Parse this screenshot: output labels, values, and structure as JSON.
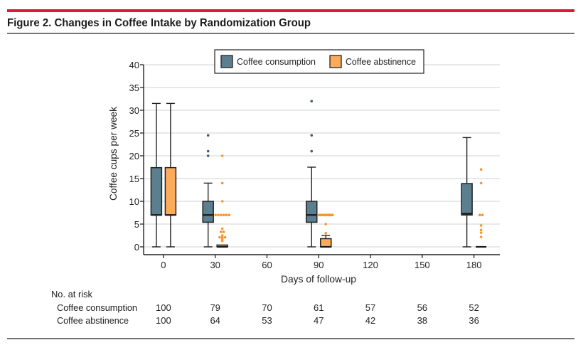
{
  "figure": {
    "title": "Figure 2. Changes in Coffee Intake by Randomization Group",
    "accent_color": "#e0173c"
  },
  "legend": {
    "items": [
      {
        "label": "Coffee consumption",
        "color": "#5b7f8e"
      },
      {
        "label": "Coffee abstinence",
        "color": "#fbab5c"
      }
    ]
  },
  "chart_data": {
    "type": "bar",
    "subtype": "boxplot",
    "title": "Figure 2. Changes in Coffee Intake by Randomization Group",
    "xlabel": "Days of follow-up",
    "ylabel": "Coffee cups per week",
    "xlim": [
      -11.5,
      195
    ],
    "ylim": [
      0,
      40
    ],
    "xticks": [
      "0",
      "30",
      "60",
      "90",
      "120",
      "150",
      "180"
    ],
    "xtick_values": [
      0,
      30,
      60,
      90,
      120,
      150,
      180
    ],
    "yticks": [
      "0",
      "5",
      "10",
      "15",
      "20",
      "25",
      "30",
      "35",
      "40"
    ],
    "ytick_values": [
      0,
      5,
      10,
      15,
      20,
      25,
      30,
      35,
      40
    ],
    "grid": true,
    "legend_position": "top-center",
    "series": [
      {
        "name": "Coffee consumption",
        "color": "#5b7f8e",
        "boxes": [
          {
            "day": 0,
            "low": 0,
            "q1": 7,
            "median": 7,
            "q3": 17.4,
            "high": 31.5,
            "outliers": []
          },
          {
            "day": 30,
            "low": 0,
            "q1": 5.4,
            "median": 7,
            "q3": 10,
            "high": 14,
            "outliers": [
              20,
              21,
              24.5
            ]
          },
          {
            "day": 90,
            "low": 0,
            "q1": 5.4,
            "median": 7,
            "q3": 10,
            "high": 17.5,
            "outliers": [
              21,
              24.5,
              32
            ]
          },
          {
            "day": 180,
            "low": 0,
            "q1": 7,
            "median": 7.3,
            "q3": 13.9,
            "high": 24,
            "outliers": []
          }
        ]
      },
      {
        "name": "Coffee abstinence",
        "color": "#fbab5c",
        "boxes": [
          {
            "day": 0,
            "low": 0,
            "q1": 7,
            "median": 7,
            "q3": 17.4,
            "high": 31.5,
            "outliers": []
          },
          {
            "day": 30,
            "low": 0,
            "q1": 0,
            "median": 0,
            "q3": 0.4,
            "high": 0.4,
            "outliers": [
              1.3,
              1.7,
              2.1,
              2.1,
              2.1,
              2.5,
              3.3,
              3.3,
              4,
              7,
              7,
              7,
              7,
              7,
              7,
              10,
              14,
              20
            ]
          },
          {
            "day": 90,
            "low": 0,
            "q1": 0,
            "median": 0,
            "q3": 1.8,
            "high": 2.5,
            "outliers": [
              3,
              5,
              7,
              7,
              7,
              7,
              7,
              7,
              7,
              7,
              7,
              7
            ]
          },
          {
            "day": 180,
            "low": 0,
            "q1": 0,
            "median": 0,
            "q3": 0,
            "high": 0,
            "outliers": [
              2.2,
              3.1,
              3.7,
              4.7,
              7,
              7,
              14,
              17
            ]
          }
        ]
      }
    ]
  },
  "risk_table": {
    "heading": "No. at risk",
    "days": [
      0,
      30,
      60,
      90,
      120,
      150,
      180
    ],
    "rows": [
      {
        "label": "Coffee consumption",
        "values": [
          "100",
          "79",
          "70",
          "61",
          "57",
          "56",
          "52"
        ]
      },
      {
        "label": "Coffee abstinence",
        "values": [
          "100",
          "64",
          "53",
          "47",
          "42",
          "38",
          "36"
        ]
      }
    ]
  }
}
